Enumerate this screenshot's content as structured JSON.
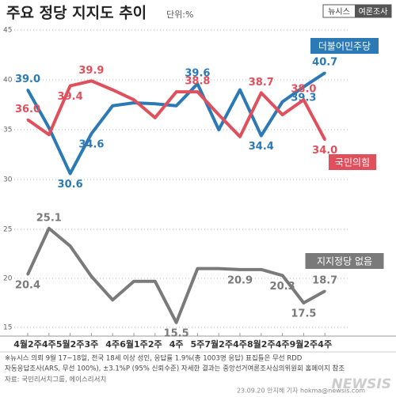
{
  "header": {
    "title": "주요 정당 지지도 추이",
    "unit": "단위:%",
    "logo": "뉴시스",
    "logo_sub": "여론조사"
  },
  "chart_data": [
    {
      "type": "line",
      "ylim": [
        30,
        45
      ],
      "yticks": [
        30,
        35,
        40,
        45
      ],
      "grid": true,
      "series": [
        {
          "name": "더불어민주당",
          "color": "#2b79b5",
          "values": [
            39.0,
            35.2,
            30.6,
            34.6,
            37.4,
            37.7,
            37.6,
            37.4,
            39.6,
            35.0,
            39.0,
            34.4,
            37.8,
            39.3,
            40.7
          ],
          "value_labels": [
            "39.0",
            null,
            "30.6",
            "34.6",
            null,
            null,
            null,
            null,
            "39.6",
            null,
            null,
            "34.4",
            null,
            "39.3",
            "40.7"
          ]
        },
        {
          "name": "국민의힘",
          "color": "#e0505c",
          "values": [
            36.0,
            34.5,
            39.4,
            39.9,
            39.0,
            38.0,
            36.2,
            38.8,
            38.8,
            36.5,
            34.3,
            38.7,
            36.5,
            38.0,
            34.0
          ],
          "value_labels": [
            "36.0",
            null,
            "39.4",
            "39.9",
            null,
            null,
            null,
            null,
            "38.8",
            null,
            null,
            "38.7",
            null,
            "38.0",
            "34.0"
          ]
        }
      ]
    },
    {
      "type": "line",
      "ylim": [
        15,
        25
      ],
      "yticks": [
        15,
        20,
        25
      ],
      "grid": true,
      "categories": [
        "4월2주",
        "4주",
        "5월2주",
        "3주",
        "4주",
        "6월1주",
        "2주",
        "4주",
        "5주",
        "7월2주",
        "4주",
        "8월2주",
        "4주",
        "9월2주",
        "4주"
      ],
      "series": [
        {
          "name": "지지정당 없음",
          "color": "#7a7a7a",
          "values": [
            20.4,
            25.1,
            23.3,
            20.2,
            17.8,
            19.7,
            19.7,
            15.5,
            21.0,
            21.0,
            20.9,
            20.9,
            20.3,
            17.5,
            18.7
          ],
          "value_labels": [
            "20.4",
            "25.1",
            null,
            null,
            null,
            null,
            null,
            "15.5",
            null,
            null,
            "20.9",
            null,
            "20.3",
            "17.5",
            "18.7"
          ]
        }
      ]
    }
  ],
  "footnote": {
    "lines": [
      "※뉴시스 의뢰 9월 17~18일, 전국 18세 이상 성인, 응답률 1.9%(총 1003명 응답) 표집틀은 무선 RDD",
      "자동응답조사(ARS, 무선 100%), ±3.1%P (95% 신뢰수준) 자세한 결과는 중앙선거여론조사심의위원회 홈페이지 참조"
    ],
    "source": "자료: 국민리서치그룹, 에이스리서치",
    "credit": "23.09.20 안지혜 기자 hokma@newsis.com",
    "watermark": "NEWSIS"
  }
}
